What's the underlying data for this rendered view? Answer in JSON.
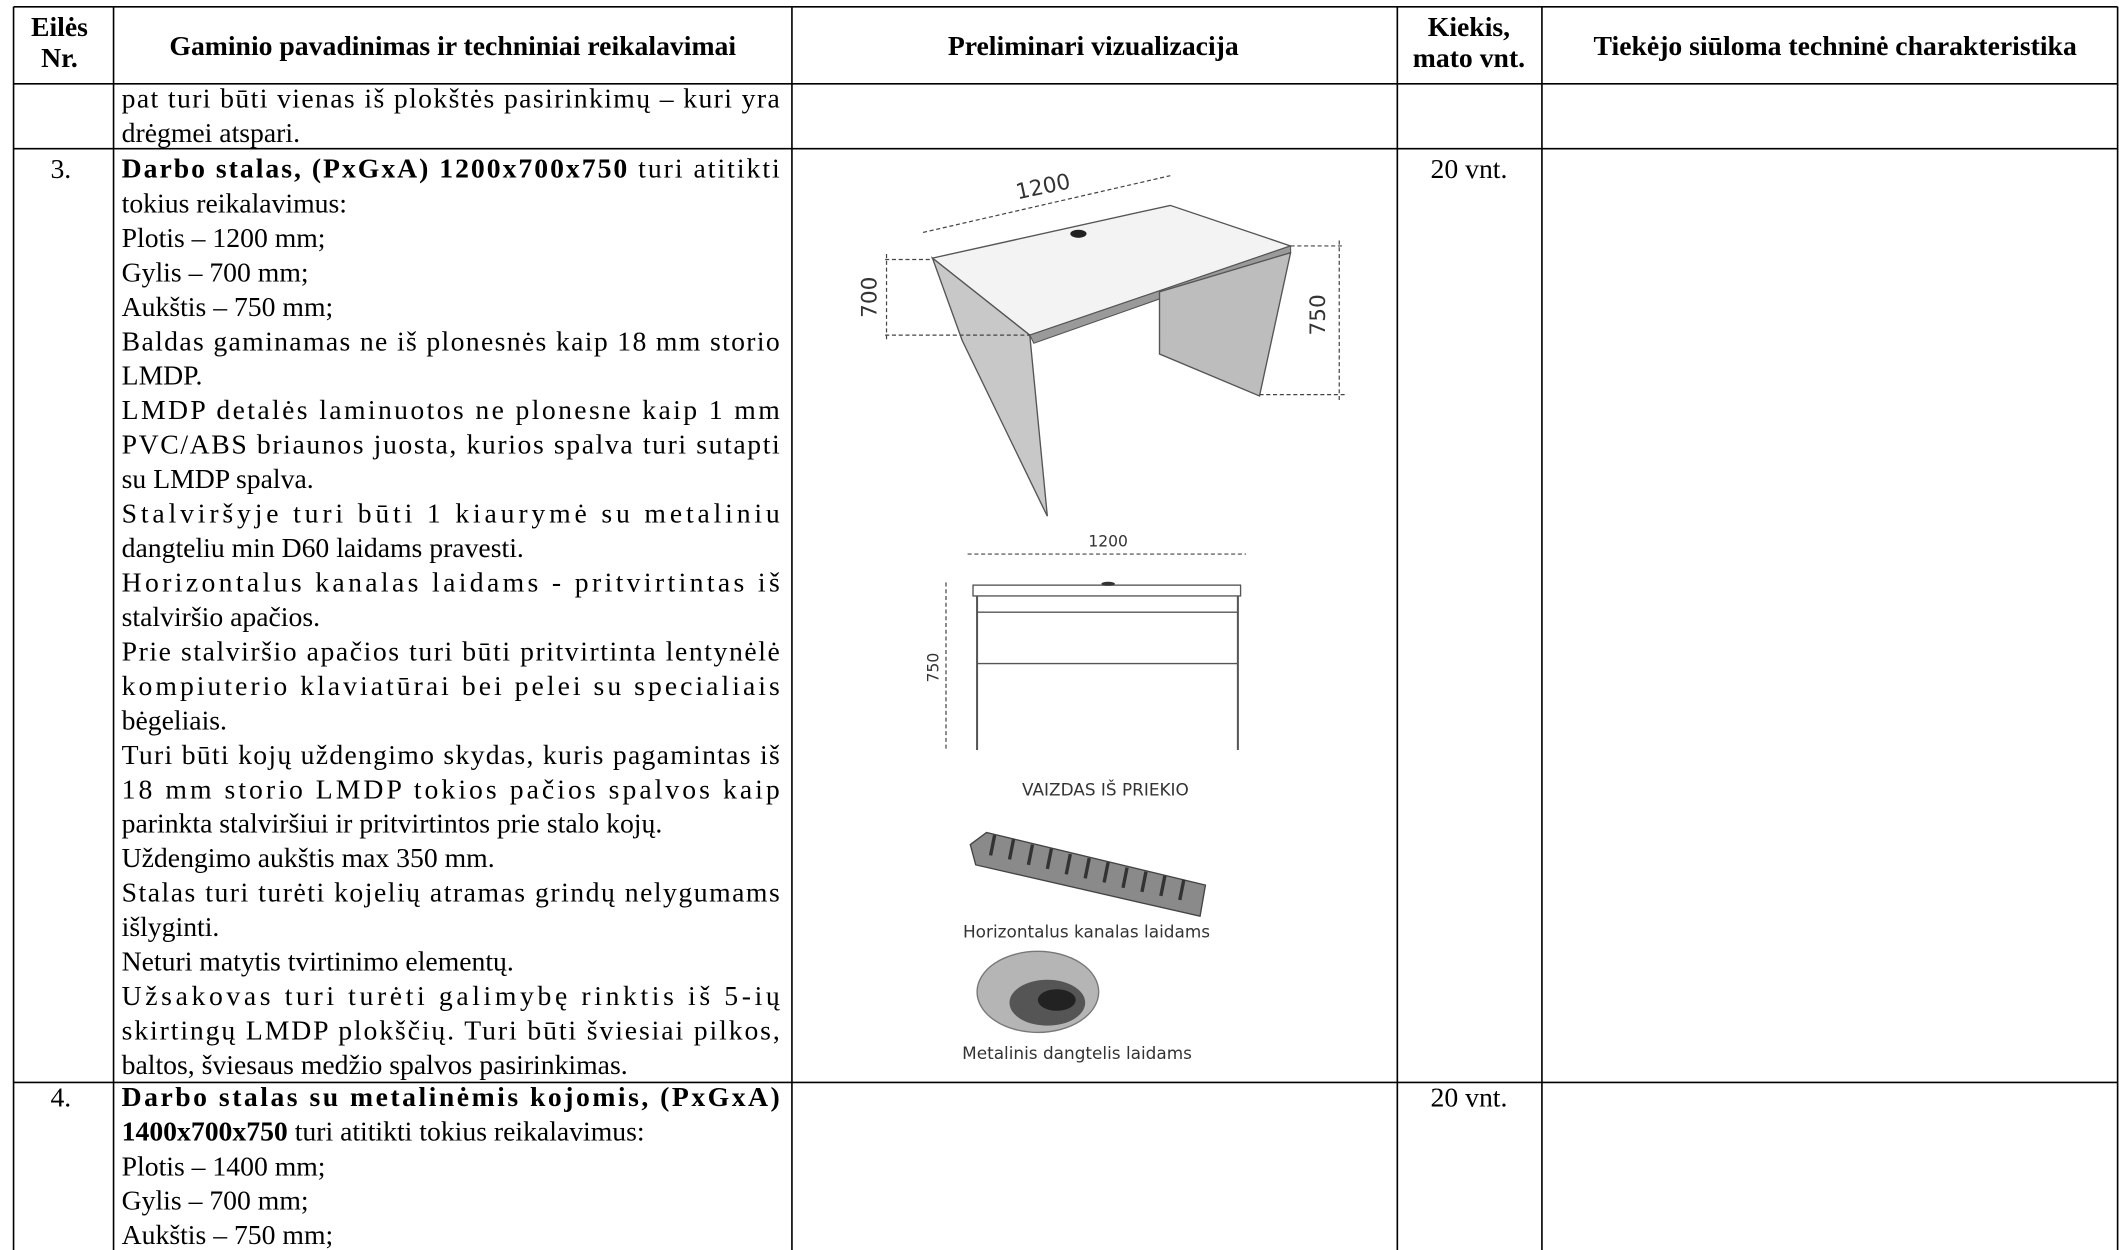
{
  "table": {
    "header": [
      [
        "Eilės",
        "Nr."
      ],
      [
        "Gaminio pavadinimas ir techniniai reikalavimai"
      ],
      [
        "Preliminari vizualizacija"
      ],
      [
        "Kiekis,",
        "mato vnt."
      ],
      [
        "Tiekėjo siūloma techninė charakteristika"
      ]
    ],
    "rows": [
      {
        "description": [
          [
            "pat turi būti vienas iš plokštės pasirinkimų – kuri yra",
            "drėgmei atspari."
          ]
        ]
      },
      {
        "number": "3.",
        "description": [
          [
            [
              {
                "text": "Darbo stalas, (PxGxA) 1200x700x750",
                "bold": true
              },
              {
                "text": " turi atitikti"
              }
            ],
            "tokius reikalavimus:"
          ],
          [
            "Plotis – 1200 mm;"
          ],
          [
            "Gylis – 700 mm;"
          ],
          [
            "Aukštis – 750 mm;"
          ],
          [
            "Baldas gaminamas ne iš plonesnės kaip 18 mm storio",
            "LMDP."
          ],
          [
            "LMDP detalės laminuotos ne plonesne kaip 1 mm",
            "PVC/ABS briaunos juosta, kurios spalva turi sutapti",
            "su LMDP spalva."
          ],
          [
            "Stalviršyje turi būti 1 kiaurymė su metaliniu",
            "dangteliu min D60 laidams pravesti."
          ],
          [
            "Horizontalus kanalas laidams - pritvirtintas iš",
            "stalviršio apačios."
          ],
          [
            "Prie stalviršio apačios turi būti pritvirtinta lentynėlė",
            "kompiuterio klaviatūrai bei pelei su specialiais",
            "bėgeliais."
          ],
          [
            "Turi būti kojų uždengimo skydas, kuris pagamintas iš",
            "18 mm storio LMDP tokios pačios spalvos kaip",
            "parinkta stalviršiui ir pritvirtintos prie stalo kojų."
          ],
          [
            "Uždengimo aukštis max 350 mm."
          ],
          [
            "Stalas turi turėti kojelių atramas grindų nelygumams",
            "išlyginti."
          ],
          [
            "Neturi matytis tvirtinimo elementų."
          ],
          [
            "Užsakovas turi turėti galimybę rinktis iš 5-ių",
            "skirtingų LMDP plokščių. Turi būti šviesiai pilkos,",
            "baltos, šviesaus medžio spalvos pasirinkimas."
          ]
        ],
        "visualization": {
          "width": "1200",
          "depth": "700",
          "height": "750",
          "front_width": "1200",
          "front_height": "750",
          "front_caption": "VAIZDAS IŠ PRIEKIO",
          "channel_caption": "Horizontalus kanalas laidams",
          "cover_caption": "Metalinis dangtelis laidams"
        },
        "quantity": "20 vnt."
      },
      {
        "number": "4.",
        "description": [
          [
            [
              {
                "text": "Darbo stalas su metalinėmis kojomis, (PxGxA)",
                "bold": true
              }
            ],
            [
              {
                "text": "1400x700x750",
                "bold": true
              },
              {
                "text": " turi atitikti tokius reikalavimus:"
              }
            ]
          ],
          [
            "Plotis – 1400 mm;"
          ],
          [
            "Gylis – 700 mm;"
          ],
          [
            "Aukštis – 750 mm;"
          ]
        ],
        "quantity": "20 vnt."
      }
    ]
  }
}
